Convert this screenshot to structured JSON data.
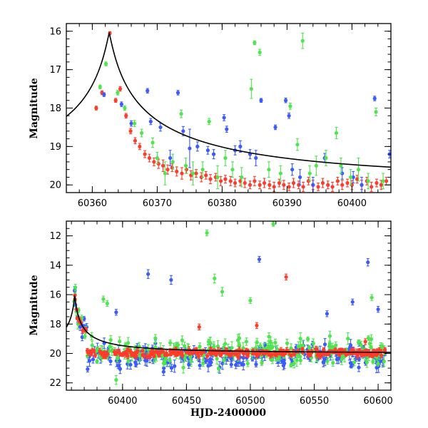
{
  "chart_data": [
    {
      "type": "scatter",
      "title": "",
      "xlabel": "",
      "ylabel": "Magnitude",
      "xlim": [
        60356,
        60406
      ],
      "ylim": [
        20.2,
        15.8
      ],
      "y_inverted": true,
      "grid": false,
      "xticks": [
        60360,
        60370,
        60380,
        60390,
        60400
      ],
      "yticks": [
        16,
        17,
        18,
        19,
        20
      ],
      "model_curve": {
        "peak_x": 60362.6,
        "peak_mag": 16.05,
        "baseline_mag": 20.0,
        "color": "#000000"
      },
      "series": [
        {
          "color": "#ff3b2b",
          "marker": "circle",
          "points": [
            [
              60360.6,
              18.0,
              0.05
            ],
            [
              60361.5,
              17.6,
              0.05
            ],
            [
              60362.7,
              16.05,
              0.04
            ],
            [
              60363.6,
              17.8,
              0.05
            ],
            [
              60364.3,
              17.5,
              0.06
            ],
            [
              60365.2,
              18.2,
              0.06
            ],
            [
              60365.9,
              18.6,
              0.07
            ],
            [
              60366.6,
              18.85,
              0.08
            ],
            [
              60367.3,
              19.0,
              0.08
            ],
            [
              60368.1,
              19.2,
              0.09
            ],
            [
              60368.8,
              19.3,
              0.1
            ],
            [
              60369.5,
              19.4,
              0.1
            ],
            [
              60370.2,
              19.45,
              0.12
            ],
            [
              60370.9,
              19.5,
              0.15
            ],
            [
              60371.6,
              19.6,
              0.12
            ],
            [
              60372.3,
              19.55,
              0.1
            ],
            [
              60373.0,
              19.65,
              0.12
            ],
            [
              60373.8,
              19.7,
              0.15
            ],
            [
              60374.5,
              19.6,
              0.1
            ],
            [
              60375.2,
              19.75,
              0.12
            ],
            [
              60376.0,
              19.7,
              0.1
            ],
            [
              60376.8,
              19.8,
              0.12
            ],
            [
              60377.5,
              19.75,
              0.1
            ],
            [
              60378.2,
              19.85,
              0.12
            ],
            [
              60379.0,
              19.8,
              0.1
            ],
            [
              60379.8,
              19.9,
              0.12
            ],
            [
              60380.5,
              19.85,
              0.1
            ],
            [
              60381.3,
              19.9,
              0.12
            ],
            [
              60382.0,
              19.95,
              0.1
            ],
            [
              60382.8,
              19.9,
              0.12
            ],
            [
              60383.5,
              19.95,
              0.12
            ],
            [
              60384.3,
              20.0,
              0.1
            ],
            [
              60385.0,
              19.9,
              0.12
            ],
            [
              60385.8,
              20.0,
              0.1
            ],
            [
              60386.5,
              19.95,
              0.12
            ],
            [
              60387.3,
              20.0,
              0.1
            ],
            [
              60388.0,
              20.05,
              0.12
            ],
            [
              60388.8,
              19.95,
              0.1
            ],
            [
              60389.5,
              20.0,
              0.12
            ],
            [
              60390.3,
              20.05,
              0.1
            ],
            [
              60391.0,
              19.95,
              0.12
            ],
            [
              60391.8,
              20.0,
              0.1
            ],
            [
              60392.5,
              20.05,
              0.12
            ],
            [
              60393.3,
              19.9,
              0.1
            ],
            [
              60394.0,
              20.0,
              0.12
            ],
            [
              60394.8,
              20.05,
              0.1
            ],
            [
              60395.5,
              19.95,
              0.12
            ],
            [
              60396.3,
              20.0,
              0.1
            ],
            [
              60397.0,
              20.05,
              0.12
            ],
            [
              60397.8,
              19.9,
              0.1
            ],
            [
              60398.5,
              20.0,
              0.12
            ],
            [
              60399.3,
              19.95,
              0.1
            ],
            [
              60400.0,
              20.0,
              0.12
            ],
            [
              60400.8,
              19.85,
              0.1
            ],
            [
              60401.5,
              20.0,
              0.12
            ],
            [
              60402.3,
              19.9,
              0.1
            ],
            [
              60403.0,
              20.05,
              0.12
            ],
            [
              60403.8,
              19.95,
              0.1
            ],
            [
              60404.5,
              20.0,
              0.12
            ],
            [
              60405.3,
              19.9,
              0.1
            ]
          ]
        },
        {
          "color": "#3b5bff",
          "marker": "circle",
          "points": [
            [
              60361.8,
              17.65,
              0.05
            ],
            [
              60364.5,
              17.9,
              0.06
            ],
            [
              60366.0,
              18.4,
              0.07
            ],
            [
              60368.5,
              17.55,
              0.06
            ],
            [
              60369.0,
              18.35,
              0.08
            ],
            [
              60370.5,
              18.5,
              0.1
            ],
            [
              60372.0,
              19.3,
              0.2
            ],
            [
              60373.2,
              17.6,
              0.06
            ],
            [
              60374.0,
              18.6,
              0.12
            ],
            [
              60375.0,
              19.05,
              0.5
            ],
            [
              60376.2,
              19.0,
              0.12
            ],
            [
              60377.8,
              19.1,
              0.1
            ],
            [
              60378.7,
              19.2,
              0.12
            ],
            [
              60380.3,
              18.25,
              0.08
            ],
            [
              60380.7,
              18.55,
              0.08
            ],
            [
              60382.0,
              19.1,
              0.12
            ],
            [
              60382.8,
              19.0,
              0.15
            ],
            [
              60384.3,
              19.2,
              0.12
            ],
            [
              60385.2,
              19.3,
              0.2
            ],
            [
              60386.0,
              17.8,
              0.05
            ],
            [
              60388.2,
              18.5,
              0.06
            ],
            [
              60389.8,
              17.8,
              0.06
            ],
            [
              60390.3,
              18.2,
              0.07
            ],
            [
              60390.8,
              19.6,
              0.15
            ],
            [
              60392.0,
              19.8,
              0.2
            ],
            [
              60394.0,
              20.0,
              0.2
            ],
            [
              60395.8,
              19.3,
              0.12
            ],
            [
              60398.5,
              19.7,
              0.15
            ],
            [
              60400.2,
              19.8,
              0.15
            ],
            [
              60401.5,
              20.0,
              0.2
            ],
            [
              60403.5,
              17.75,
              0.06
            ],
            [
              60405.8,
              19.2,
              0.1
            ]
          ]
        },
        {
          "color": "#4ee54e",
          "marker": "circle",
          "points": [
            [
              60361.2,
              17.45,
              0.05
            ],
            [
              60362.1,
              16.85,
              0.05
            ],
            [
              60363.9,
              17.6,
              0.06
            ],
            [
              60365.0,
              18.0,
              0.06
            ],
            [
              60366.5,
              18.4,
              0.08
            ],
            [
              60367.6,
              18.65,
              0.1
            ],
            [
              60369.3,
              18.9,
              0.12
            ],
            [
              60370.0,
              19.3,
              0.15
            ],
            [
              60371.2,
              19.7,
              0.3
            ],
            [
              60372.4,
              19.4,
              0.2
            ],
            [
              60373.7,
              18.15,
              0.1
            ],
            [
              60374.4,
              19.5,
              0.2
            ],
            [
              60375.5,
              19.7,
              0.3
            ],
            [
              60377.0,
              19.6,
              0.2
            ],
            [
              60378.0,
              18.35,
              0.08
            ],
            [
              60379.3,
              19.8,
              0.3
            ],
            [
              60380.5,
              19.3,
              0.2
            ],
            [
              60381.6,
              19.6,
              0.2
            ],
            [
              60383.0,
              19.8,
              0.25
            ],
            [
              60384.5,
              17.5,
              0.25
            ],
            [
              60385.0,
              16.3,
              0.05
            ],
            [
              60385.8,
              16.55,
              0.08
            ],
            [
              60387.2,
              19.6,
              0.2
            ],
            [
              60389.0,
              19.7,
              0.2
            ],
            [
              60390.5,
              17.95,
              0.08
            ],
            [
              60391.6,
              18.95,
              0.15
            ],
            [
              60392.4,
              16.25,
              0.2
            ],
            [
              60393.5,
              19.7,
              0.2
            ],
            [
              60394.5,
              19.5,
              0.25
            ],
            [
              60396.0,
              19.3,
              0.2
            ],
            [
              60397.6,
              18.65,
              0.15
            ],
            [
              60398.3,
              19.5,
              0.2
            ],
            [
              60399.8,
              19.8,
              0.2
            ],
            [
              60401.0,
              19.6,
              0.3
            ],
            [
              60402.5,
              19.9,
              0.2
            ],
            [
              60403.7,
              18.1,
              0.1
            ],
            [
              60404.8,
              19.9,
              0.2
            ]
          ]
        }
      ]
    },
    {
      "type": "scatter",
      "title": "",
      "xlabel": "HJD-2400000",
      "ylabel": "Magnitude",
      "xlim": [
        60356,
        60610
      ],
      "ylim": [
        22.5,
        11.0
      ],
      "y_inverted": true,
      "grid": false,
      "xticks": [
        60400,
        60450,
        60500,
        60550,
        60600
      ],
      "yticks": [
        12,
        14,
        16,
        18,
        20,
        22
      ],
      "model_curve": {
        "peak_x": 60362.6,
        "peak_mag": 16.05,
        "baseline_mag": 20.0,
        "color": "#000000"
      },
      "series": [
        {
          "color": "#ff3b2b",
          "marker": "circle",
          "dense_band": {
            "x_from": 60362,
            "x_to": 60606,
            "count": 280,
            "center": 19.95,
            "spread": 0.35,
            "err": 0.15
          },
          "points": [
            [
              60362.7,
              16.05,
              0.05
            ],
            [
              60364.5,
              17.6,
              0.1
            ],
            [
              60460,
              18.2,
              0.2
            ],
            [
              60505,
              18.1,
              0.2
            ],
            [
              60528,
              14.8,
              0.2
            ],
            [
              60590,
              19.2,
              0.2
            ]
          ]
        },
        {
          "color": "#3b5bff",
          "marker": "circle",
          "dense_band": {
            "x_from": 60362,
            "x_to": 60606,
            "count": 220,
            "center": 20.2,
            "spread": 1.2,
            "err": 0.3
          },
          "points": [
            [
              60420,
              14.6,
              0.3
            ],
            [
              60438,
              15.0,
              0.3
            ],
            [
              60507,
              13.6,
              0.2
            ],
            [
              60592,
              13.8,
              0.25
            ],
            [
              60395,
              17.2,
              0.2
            ],
            [
              60580,
              16.5,
              0.2
            ],
            [
              60560,
              17.3,
              0.2
            ],
            [
              60600,
              17.0,
              0.2
            ]
          ]
        },
        {
          "color": "#4ee54e",
          "marker": "circle",
          "dense_band": {
            "x_from": 60362,
            "x_to": 60606,
            "count": 220,
            "center": 19.9,
            "spread": 1.3,
            "err": 0.3
          },
          "points": [
            [
              60466,
              11.8,
              0.2
            ],
            [
              60518,
              11.2,
              0.15
            ],
            [
              60472,
              14.9,
              0.3
            ],
            [
              60478,
              15.8,
              0.3
            ],
            [
              60385,
              16.3,
              0.2
            ],
            [
              60388,
              16.6,
              0.2
            ],
            [
              60500,
              16.4,
              0.2
            ],
            [
              60595,
              16.2,
              0.2
            ],
            [
              60368,
              17.6,
              0.2
            ],
            [
              60395,
              21.8,
              0.3
            ]
          ]
        }
      ]
    }
  ]
}
